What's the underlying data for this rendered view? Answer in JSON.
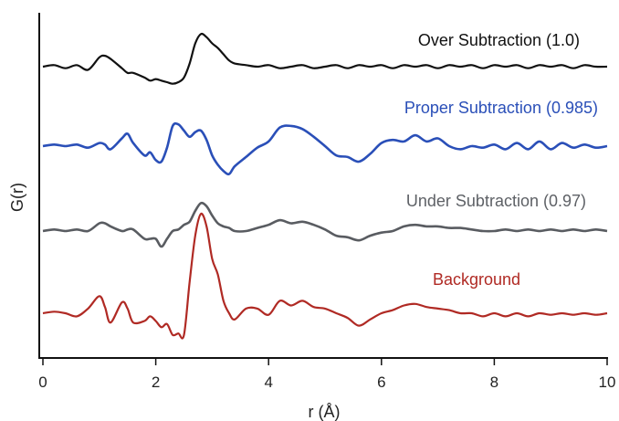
{
  "chart_data": {
    "type": "line",
    "title": "",
    "xlabel": "r (Å)",
    "ylabel": "G(r)",
    "xlim": [
      0,
      10
    ],
    "x_ticks": [
      0,
      2,
      4,
      6,
      8,
      10
    ],
    "x_tick_labels": [
      "0",
      "2",
      "4",
      "6",
      "8",
      "10"
    ],
    "y_ticks_shown": false,
    "grid": false,
    "legend": "inline labels above each curve",
    "x": [
      0.0,
      0.2,
      0.4,
      0.6,
      0.8,
      1.0,
      1.1,
      1.2,
      1.4,
      1.5,
      1.6,
      1.8,
      1.9,
      2.0,
      2.1,
      2.2,
      2.3,
      2.4,
      2.5,
      2.6,
      2.7,
      2.8,
      2.9,
      3.0,
      3.1,
      3.2,
      3.3,
      3.4,
      3.6,
      3.8,
      4.0,
      4.2,
      4.4,
      4.6,
      4.8,
      5.0,
      5.2,
      5.4,
      5.6,
      5.8,
      6.0,
      6.2,
      6.4,
      6.6,
      6.8,
      7.0,
      7.2,
      7.4,
      7.6,
      7.8,
      8.0,
      8.2,
      8.4,
      8.6,
      8.8,
      9.0,
      9.2,
      9.4,
      9.6,
      9.8,
      10.0
    ],
    "series": [
      {
        "name": "Over Subtraction (1.0)",
        "color": "#111111",
        "values": [
          0.0,
          0.1,
          -0.1,
          0.1,
          -0.2,
          0.6,
          0.7,
          0.5,
          -0.1,
          -0.4,
          -0.4,
          -0.7,
          -0.9,
          -0.8,
          -0.9,
          -1.0,
          -1.1,
          -1.0,
          -0.7,
          0.2,
          1.5,
          2.1,
          1.9,
          1.5,
          1.2,
          0.8,
          0.4,
          0.2,
          0.1,
          0.0,
          0.1,
          -0.1,
          0.0,
          0.1,
          -0.1,
          0.0,
          0.1,
          -0.1,
          0.1,
          0.0,
          0.1,
          -0.1,
          0.1,
          0.0,
          0.1,
          -0.1,
          0.1,
          0.0,
          0.1,
          -0.1,
          0.1,
          0.0,
          0.1,
          -0.1,
          0.1,
          0.0,
          0.1,
          -0.1,
          0.1,
          0.0,
          0.0
        ]
      },
      {
        "name": "Proper Subtraction (0.985)",
        "color": "#2a4fb8",
        "values": [
          0.0,
          0.1,
          0.0,
          0.1,
          -0.1,
          0.2,
          0.1,
          -0.2,
          0.5,
          0.8,
          0.2,
          -0.6,
          -0.4,
          -0.9,
          -1.0,
          -0.1,
          1.3,
          1.4,
          1.0,
          0.6,
          0.9,
          1.0,
          0.4,
          -0.6,
          -1.2,
          -1.6,
          -1.8,
          -1.3,
          -0.7,
          -0.1,
          0.3,
          1.2,
          1.3,
          1.1,
          0.6,
          0.0,
          -0.6,
          -0.7,
          -1.0,
          -0.5,
          0.2,
          0.4,
          0.3,
          0.7,
          0.3,
          0.5,
          0.0,
          -0.2,
          0.0,
          -0.1,
          0.1,
          -0.2,
          0.2,
          -0.2,
          0.3,
          -0.2,
          0.2,
          -0.1,
          0.1,
          -0.1,
          0.0
        ]
      },
      {
        "name": "Under Subtraction (0.97)",
        "color": "#595c61",
        "values": [
          0.0,
          0.1,
          0.0,
          0.1,
          0.0,
          0.5,
          0.5,
          0.3,
          0.0,
          0.1,
          0.1,
          -0.5,
          -0.5,
          -0.5,
          -1.0,
          -0.5,
          0.0,
          0.1,
          0.4,
          0.6,
          1.3,
          1.8,
          1.6,
          1.0,
          0.5,
          0.3,
          0.2,
          0.0,
          0.0,
          0.2,
          0.4,
          0.7,
          0.5,
          0.6,
          0.4,
          0.1,
          -0.3,
          -0.4,
          -0.6,
          -0.3,
          -0.1,
          0.0,
          0.3,
          0.4,
          0.3,
          0.3,
          0.2,
          0.2,
          0.1,
          0.0,
          0.0,
          0.1,
          0.0,
          0.1,
          0.0,
          0.1,
          0.0,
          0.1,
          0.0,
          0.1,
          0.0
        ]
      },
      {
        "name": "Background",
        "color": "#b02a24",
        "values": [
          0.0,
          0.1,
          0.0,
          -0.2,
          0.3,
          1.1,
          0.4,
          -0.6,
          0.7,
          0.3,
          -0.6,
          -0.5,
          -0.2,
          -0.5,
          -0.9,
          -0.7,
          -1.4,
          -1.3,
          -1.4,
          2.0,
          5.0,
          6.4,
          5.6,
          3.5,
          2.5,
          0.8,
          0.0,
          -0.4,
          0.3,
          0.3,
          -0.1,
          0.8,
          0.5,
          0.8,
          0.4,
          0.3,
          0.0,
          -0.3,
          -0.8,
          -0.4,
          0.0,
          0.2,
          0.5,
          0.6,
          0.4,
          0.3,
          0.2,
          0.0,
          0.0,
          -0.2,
          0.0,
          -0.2,
          0.0,
          -0.2,
          0.0,
          -0.1,
          0.0,
          -0.1,
          0.0,
          -0.1,
          0.0
        ]
      }
    ]
  }
}
